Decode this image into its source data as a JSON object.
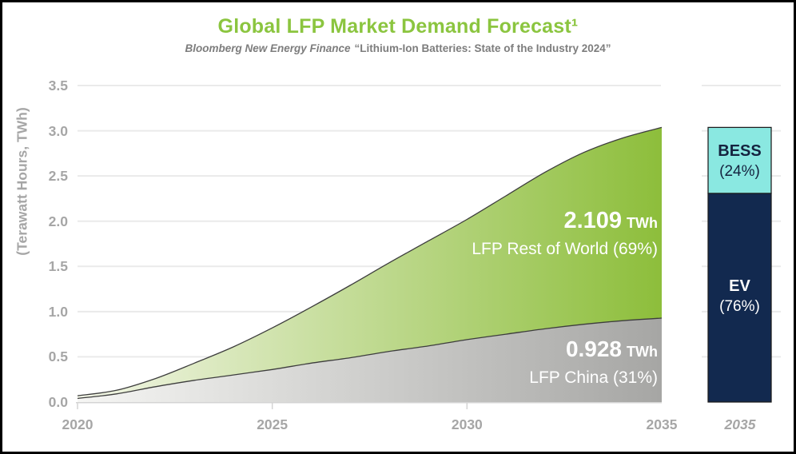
{
  "header": {
    "title": "Global LFP Market Demand Forecast¹",
    "subtitle_source": "Bloomberg New Energy Finance",
    "subtitle_report": "“Lithium-Ion Batteries: State of the Industry 2024”"
  },
  "y_axis": {
    "title": "(Terawatt Hours, TWh)",
    "tick_labels": [
      "3.5",
      "3.0",
      "2.5",
      "2.0",
      "1.5",
      "1.0",
      "0.5",
      "0.0"
    ]
  },
  "x_axis": {
    "tick_labels": [
      "2020",
      "2025",
      "2030",
      "2035"
    ]
  },
  "annotations": {
    "rest_of_world": {
      "value": "2.109",
      "unit": "TWh",
      "label": "LFP Rest of World (69%)"
    },
    "china": {
      "value": "0.928",
      "unit": "TWh",
      "label": "LFP China (31%)"
    }
  },
  "colors": {
    "title_green": "#8bc53f",
    "subtitle_gray": "#7d7d7d",
    "axis_text": "#a6a6a6",
    "gridline": "#eaeaea",
    "axis_line": "#d4d4d4",
    "boundary_stroke": "#3d3d3d",
    "green_area_start": "#f3f6e8",
    "green_area_end": "#8dbe3b",
    "gray_area_start": "#f6f6f4",
    "gray_area_end": "#a6a6a4",
    "bess_fill": "#8ae8e1",
    "ev_fill": "#12294f",
    "bar_outline": "#1c1c1c",
    "annotation_text": "#ffffff"
  },
  "chart_data": {
    "type": "area",
    "stacked": true,
    "title": "Global LFP Market Demand Forecast",
    "ylabel": "(Terawatt Hours, TWh)",
    "ylim": [
      0,
      3.5
    ],
    "xlim": [
      2020,
      2035
    ],
    "grid": true,
    "x": [
      2020,
      2021,
      2022,
      2023,
      2024,
      2025,
      2026,
      2027,
      2028,
      2029,
      2030,
      2031,
      2032,
      2033,
      2034,
      2035
    ],
    "series": [
      {
        "name": "LFP China",
        "share_2035": "31%",
        "value_2035_twh": 0.928,
        "values": [
          0.04,
          0.09,
          0.17,
          0.24,
          0.3,
          0.36,
          0.43,
          0.49,
          0.56,
          0.62,
          0.69,
          0.75,
          0.81,
          0.86,
          0.9,
          0.928
        ]
      },
      {
        "name": "LFP Rest of World",
        "share_2035": "69%",
        "value_2035_twh": 2.109,
        "values": [
          0.03,
          0.04,
          0.09,
          0.19,
          0.31,
          0.46,
          0.62,
          0.8,
          0.98,
          1.16,
          1.33,
          1.53,
          1.73,
          1.9,
          2.02,
          2.109
        ]
      }
    ],
    "bar_2035": {
      "type": "bar",
      "x_label": "2035",
      "total_twh": 3.037,
      "segments": [
        {
          "label": "BESS",
          "share_label": "(24%)",
          "fraction": 0.24,
          "position": "top"
        },
        {
          "label": "EV",
          "share_label": "(76%)",
          "fraction": 0.76,
          "position": "bottom"
        }
      ]
    }
  }
}
